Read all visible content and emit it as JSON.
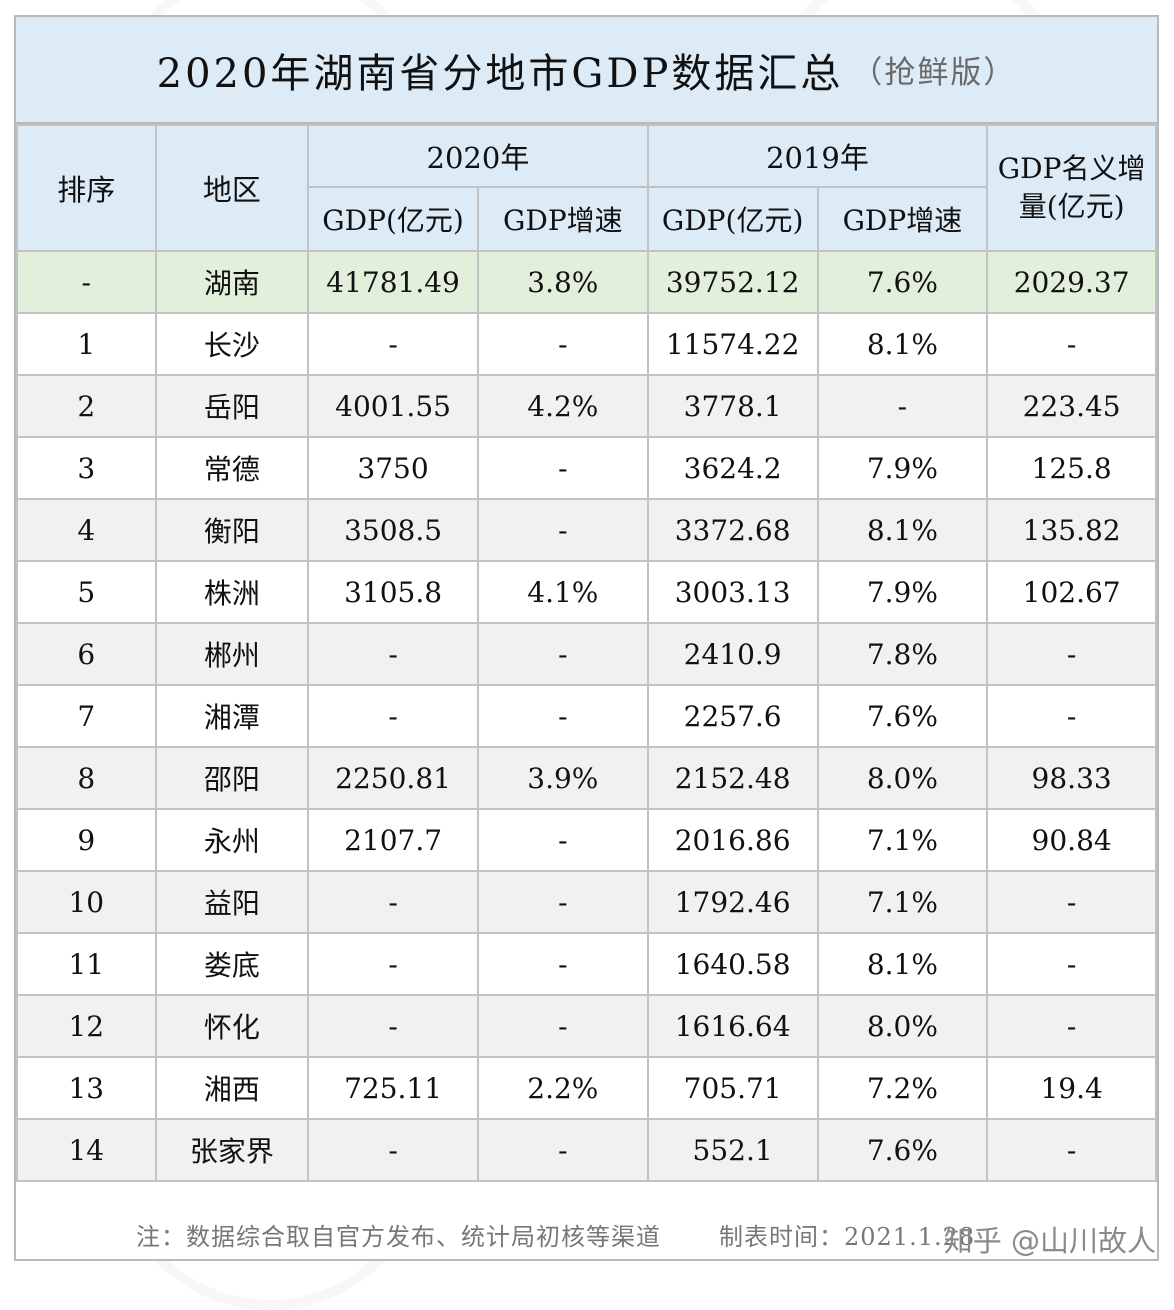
{
  "title": {
    "main": "2020年湖南省分地市GDP数据汇总",
    "sub": "（抢鲜版）"
  },
  "header": {
    "rank": "排序",
    "region": "地区",
    "y2020": "2020年",
    "y2019": "2019年",
    "increase": "GDP名义增量(亿元)",
    "gdp": "GDP(亿元)",
    "growth": "GDP增速"
  },
  "rows": [
    {
      "rank": "-",
      "region": "湖南",
      "gdp2020": "41781.49",
      "growth2020": "3.8%",
      "gdp2019": "39752.12",
      "growth2019": "7.6%",
      "increase": "2029.37"
    },
    {
      "rank": "1",
      "region": "长沙",
      "gdp2020": "-",
      "growth2020": "-",
      "gdp2019": "11574.22",
      "growth2019": "8.1%",
      "increase": "-"
    },
    {
      "rank": "2",
      "region": "岳阳",
      "gdp2020": "4001.55",
      "growth2020": "4.2%",
      "gdp2019": "3778.1",
      "growth2019": "-",
      "increase": "223.45"
    },
    {
      "rank": "3",
      "region": "常德",
      "gdp2020": "3750",
      "growth2020": "-",
      "gdp2019": "3624.2",
      "growth2019": "7.9%",
      "increase": "125.8"
    },
    {
      "rank": "4",
      "region": "衡阳",
      "gdp2020": "3508.5",
      "growth2020": "-",
      "gdp2019": "3372.68",
      "growth2019": "8.1%",
      "increase": "135.82"
    },
    {
      "rank": "5",
      "region": "株洲",
      "gdp2020": "3105.8",
      "growth2020": "4.1%",
      "gdp2019": "3003.13",
      "growth2019": "7.9%",
      "increase": "102.67"
    },
    {
      "rank": "6",
      "region": "郴州",
      "gdp2020": "-",
      "growth2020": "-",
      "gdp2019": "2410.9",
      "growth2019": "7.8%",
      "increase": "-"
    },
    {
      "rank": "7",
      "region": "湘潭",
      "gdp2020": "-",
      "growth2020": "-",
      "gdp2019": "2257.6",
      "growth2019": "7.6%",
      "increase": "-"
    },
    {
      "rank": "8",
      "region": "邵阳",
      "gdp2020": "2250.81",
      "growth2020": "3.9%",
      "gdp2019": "2152.48",
      "growth2019": "8.0%",
      "increase": "98.33"
    },
    {
      "rank": "9",
      "region": "永州",
      "gdp2020": "2107.7",
      "growth2020": "-",
      "gdp2019": "2016.86",
      "growth2019": "7.1%",
      "increase": "90.84"
    },
    {
      "rank": "10",
      "region": "益阳",
      "gdp2020": "-",
      "growth2020": "-",
      "gdp2019": "1792.46",
      "growth2019": "7.1%",
      "increase": "-"
    },
    {
      "rank": "11",
      "region": "娄底",
      "gdp2020": "-",
      "growth2020": "-",
      "gdp2019": "1640.58",
      "growth2019": "8.1%",
      "increase": "-"
    },
    {
      "rank": "12",
      "region": "怀化",
      "gdp2020": "-",
      "growth2020": "-",
      "gdp2019": "1616.64",
      "growth2019": "8.0%",
      "increase": "-"
    },
    {
      "rank": "13",
      "region": "湘西",
      "gdp2020": "725.11",
      "growth2020": "2.2%",
      "gdp2019": "705.71",
      "growth2019": "7.2%",
      "increase": "19.4"
    },
    {
      "rank": "14",
      "region": "张家界",
      "gdp2020": "-",
      "growth2020": "-",
      "gdp2019": "552.1",
      "growth2019": "7.6%",
      "increase": "-"
    }
  ],
  "footer": {
    "note": "注：数据综合取自官方发布、统计局初核等渠道",
    "time": "制表时间：2021.1.28"
  },
  "watermark": "知乎 @山川故人",
  "colors": {
    "header_bg": "#ddebf7",
    "total_row_bg": "#e2efda",
    "stripe_bg": "#f1f1f1",
    "grid": "#c2c2c2"
  }
}
